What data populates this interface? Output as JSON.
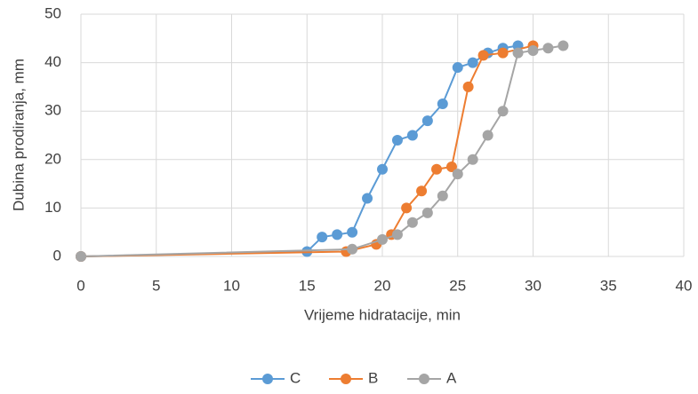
{
  "chart_data": {
    "type": "line",
    "x_label": "Vrijeme hidratacije, min",
    "y_label": "Dubina prodiranja, mm",
    "xlim": [
      0,
      40
    ],
    "xticks": [
      0,
      5,
      10,
      15,
      20,
      25,
      30,
      35,
      40
    ],
    "ylim": [
      0,
      50
    ],
    "yticks": [
      0,
      10,
      20,
      30,
      40,
      50
    ],
    "grid": true,
    "legend": "bottom",
    "series": [
      {
        "name": "C",
        "color": "#5b9bd5",
        "x": [
          0,
          15,
          16,
          17,
          18,
          19,
          20,
          21,
          22,
          23,
          24,
          25,
          26,
          27,
          28,
          29
        ],
        "values": [
          0,
          1,
          4,
          4.5,
          5,
          12,
          18,
          24,
          25,
          28,
          31.5,
          39,
          40,
          42,
          43,
          43.5
        ]
      },
      {
        "name": "B",
        "color": "#ed7d31",
        "x": [
          0,
          17.6,
          19.6,
          20.6,
          21.6,
          22.6,
          23.6,
          24.6,
          25.7,
          26.7,
          28,
          30
        ],
        "values": [
          0,
          1,
          2.5,
          4.5,
          10,
          13.5,
          18,
          18.5,
          35,
          41.5,
          42,
          43.5
        ]
      },
      {
        "name": "A",
        "color": "#a5a5a5",
        "x": [
          0,
          18,
          20,
          21,
          22,
          23,
          24,
          25,
          26,
          27,
          28,
          29,
          30,
          31,
          32
        ],
        "values": [
          0,
          1.5,
          3.5,
          4.5,
          7,
          9,
          12.5,
          17,
          20,
          25,
          30,
          42,
          42.5,
          43,
          43.5
        ]
      }
    ]
  }
}
